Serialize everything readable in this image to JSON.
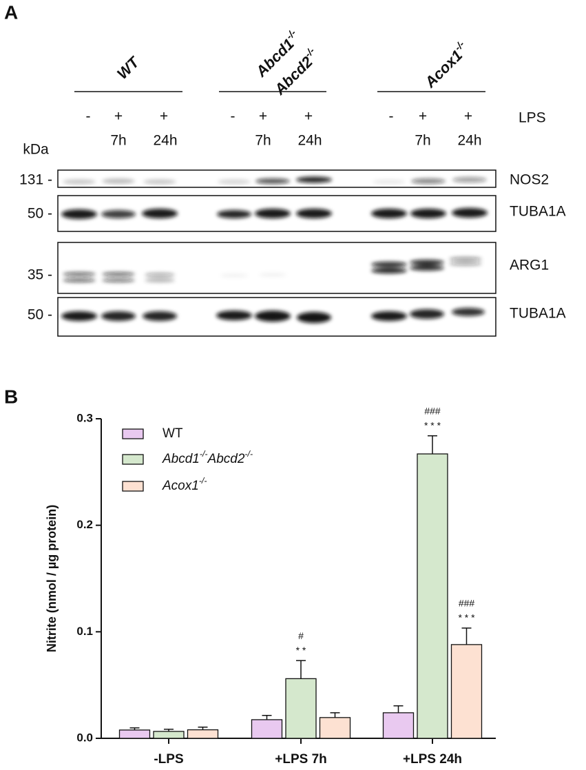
{
  "panel_a": {
    "label": "A",
    "units": "kDa",
    "groups": [
      {
        "name_lines": [
          "WT"
        ],
        "lanes": [
          {
            "lps": "-",
            "time": null
          },
          {
            "lps": "+",
            "time": "7h"
          },
          {
            "lps": "+",
            "time": "24h"
          }
        ]
      },
      {
        "name_lines": [
          "Abcd1-/-",
          "Abcd2-/-"
        ],
        "lanes": [
          {
            "lps": "-",
            "time": null
          },
          {
            "lps": "+",
            "time": "7h"
          },
          {
            "lps": "+",
            "time": "24h"
          }
        ]
      },
      {
        "name_lines": [
          "Acox1-/-"
        ],
        "lanes": [
          {
            "lps": "-",
            "time": null
          },
          {
            "lps": "+",
            "time": "7h"
          },
          {
            "lps": "+",
            "time": "24h"
          }
        ]
      }
    ],
    "treatment": "LPS",
    "blots": [
      {
        "marker": "131 -",
        "protein": "NOS2"
      },
      {
        "marker": "50 -",
        "protein": "TUBA1A"
      },
      {
        "marker": "35 -",
        "protein": "ARG1"
      },
      {
        "marker": "50 -",
        "protein": "TUBA1A"
      }
    ]
  },
  "chart_data": {
    "type": "bar",
    "panel_label": "B",
    "y_label": "Nitrite (nmol / µg protein)",
    "categories": [
      "-LPS",
      "+LPS 7h",
      "+LPS 24h"
    ],
    "ylim": [
      0,
      0.3
    ],
    "yticks": [
      {
        "value": 0,
        "label": "0.0"
      },
      0.1,
      0.2,
      0.3
    ],
    "series": [
      {
        "name": "WT",
        "color": "#e9c9f0",
        "values": [
          0.0078,
          0.0175,
          0.024
        ],
        "errors": [
          0.002,
          0.004,
          0.0065
        ],
        "stars": [
          null,
          null,
          null
        ],
        "hashes": [
          null,
          null,
          null
        ]
      },
      {
        "name": "Abcd1-/-Abcd2-/-",
        "color": "#d5e8cd",
        "values": [
          0.0065,
          0.056,
          0.267
        ],
        "errors": [
          0.002,
          0.017,
          0.017
        ],
        "stars": [
          null,
          "* *",
          "* * *"
        ],
        "hashes": [
          null,
          "#",
          "###"
        ]
      },
      {
        "name": "Acox1-/-",
        "color": "#fde1d2",
        "values": [
          0.008,
          0.0195,
          0.088
        ],
        "errors": [
          0.0025,
          0.0045,
          0.0155
        ],
        "stars": [
          null,
          null,
          "* * *"
        ],
        "hashes": [
          null,
          null,
          "###"
        ]
      }
    ]
  }
}
